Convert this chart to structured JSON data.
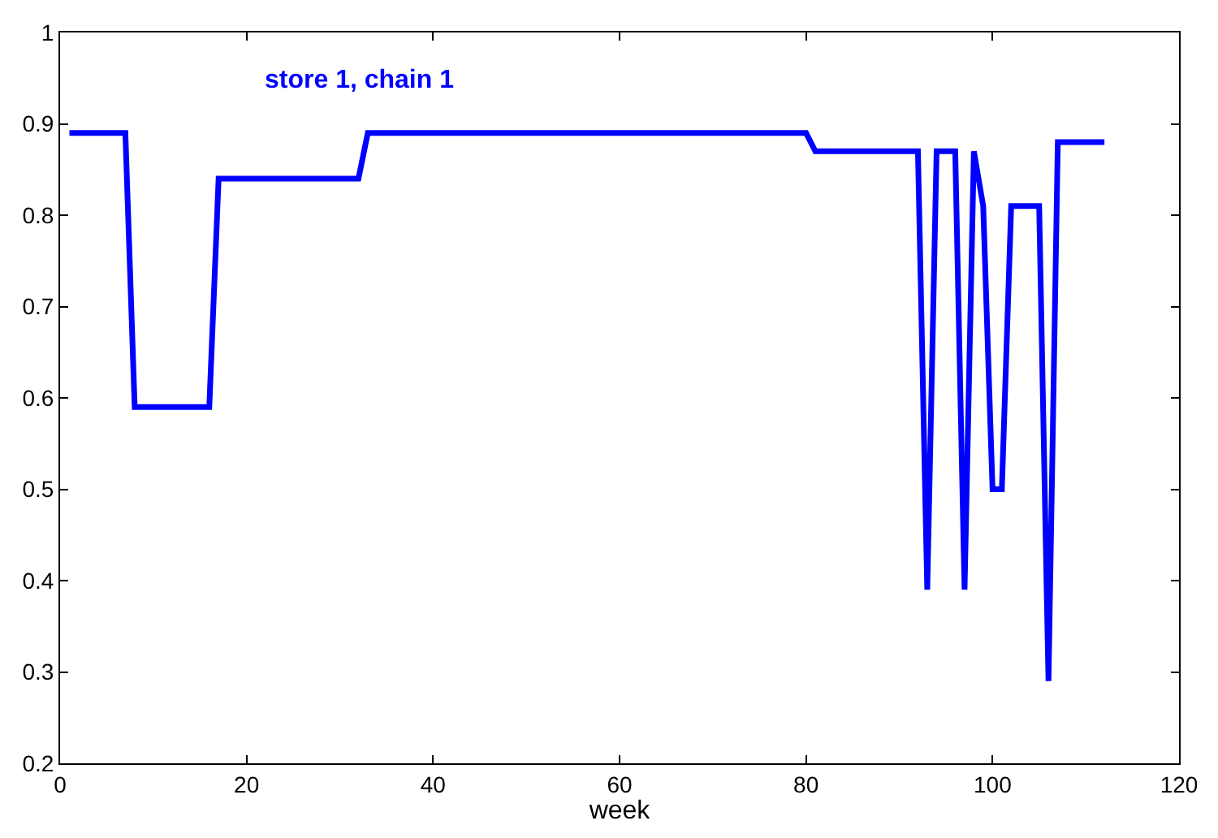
{
  "chart_data": {
    "type": "line",
    "xlabel": "week",
    "x": [
      1,
      7,
      8,
      16,
      17,
      32,
      33,
      80,
      81,
      92,
      93,
      94,
      96,
      97,
      98,
      99,
      100,
      101,
      102,
      105,
      106,
      107,
      112
    ],
    "series": [
      {
        "name": "store 1, chain 1",
        "color": "#0000ff",
        "values": [
          0.89,
          0.89,
          0.59,
          0.59,
          0.84,
          0.84,
          0.89,
          0.89,
          0.87,
          0.87,
          0.39,
          0.87,
          0.87,
          0.39,
          0.87,
          0.81,
          0.5,
          0.5,
          0.81,
          0.81,
          0.29,
          0.88,
          0.88
        ]
      }
    ],
    "xlim": [
      0,
      120
    ],
    "xticks": [
      0,
      20,
      40,
      60,
      80,
      100,
      120
    ],
    "ylim": [
      0.2,
      1
    ],
    "yticks": [
      0.2,
      0.3,
      0.4,
      0.5,
      0.6,
      0.7,
      0.8,
      0.9,
      1
    ],
    "legend": false,
    "marker": "none",
    "line_style": "solid"
  }
}
